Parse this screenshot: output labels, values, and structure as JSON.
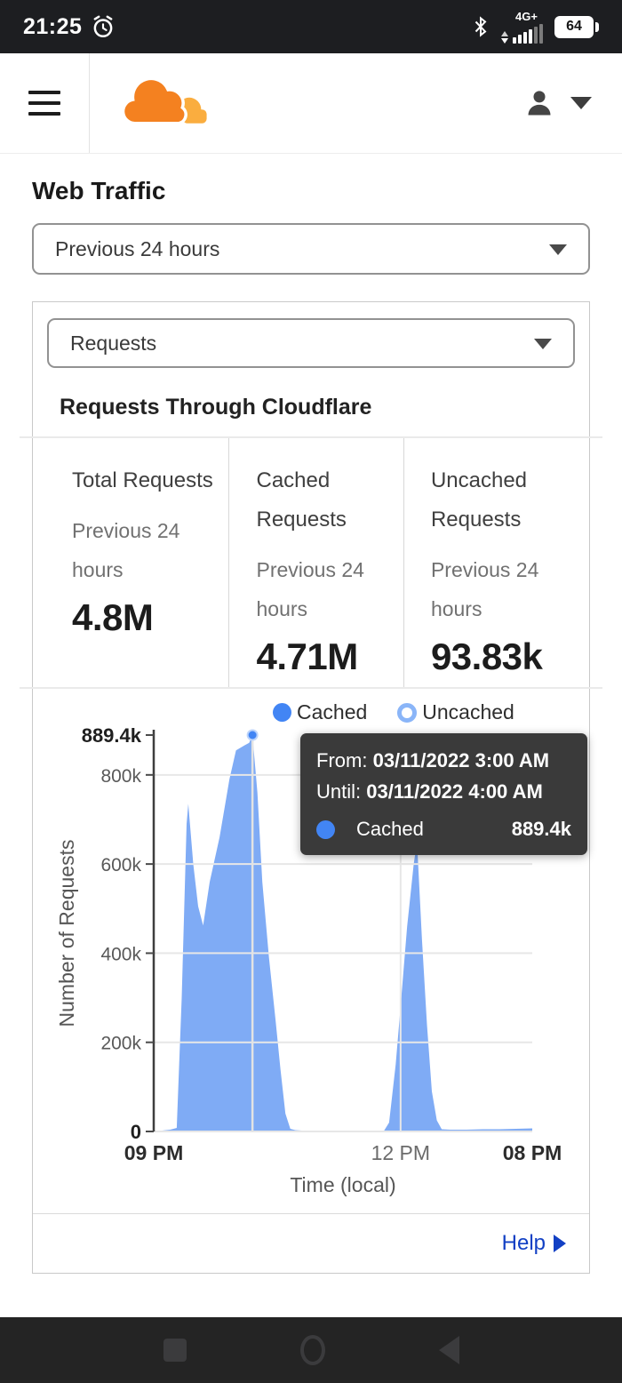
{
  "status_bar": {
    "time": "21:25",
    "network": "4G+",
    "battery": "64"
  },
  "main": {
    "title": "Web Traffic"
  },
  "time_range_select": {
    "value": "Previous 24 hours"
  },
  "metric_select": {
    "value": "Requests"
  },
  "panel": {
    "title": "Requests Through Cloudflare"
  },
  "stats": [
    {
      "title": "Total Requests",
      "subtitle": "Previous 24 hours",
      "value": "4.8M"
    },
    {
      "title": "Cached Requests",
      "subtitle": "Previous 24 hours",
      "value": "4.71M"
    },
    {
      "title": "Uncached Requests",
      "subtitle": "Previous 24 hours",
      "value": "93.83k"
    }
  ],
  "chart_data": {
    "type": "area",
    "title": "Requests Through Cloudflare",
    "xlabel": "Time (local)",
    "ylabel": "Number of Requests",
    "x_axis": "hours offset from 09 PM 03/10/2022",
    "x_range": [
      0,
      23
    ],
    "ylim": [
      0,
      889.4
    ],
    "values_unit": "thousands of requests",
    "grid": true,
    "legend_position": "top",
    "legend": [
      {
        "label": "Cached",
        "marker": "filled",
        "color": "#4285f4"
      },
      {
        "label": "Uncached",
        "marker": "ring",
        "color": "#8ab5f8"
      }
    ],
    "y_ticks": [
      {
        "label": "889.4k",
        "value": 889.4,
        "bold": true,
        "gridline": false
      },
      {
        "label": "800k",
        "value": 800,
        "bold": false,
        "gridline": true
      },
      {
        "label": "600k",
        "value": 600,
        "bold": false,
        "gridline": true
      },
      {
        "label": "400k",
        "value": 400,
        "bold": false,
        "gridline": true
      },
      {
        "label": "200k",
        "value": 200,
        "bold": false,
        "gridline": true
      },
      {
        "label": "0",
        "value": 0,
        "bold": true,
        "gridline": true
      }
    ],
    "x_ticks": [
      {
        "label": "09 PM",
        "hour": 0,
        "bold": true,
        "gridline": false
      },
      {
        "label": "12 PM",
        "hour": 15,
        "bold": false,
        "gridline": true
      },
      {
        "label": "08 PM",
        "hour": 23,
        "bold": true,
        "gridline": false
      }
    ],
    "series": [
      {
        "name": "Cached",
        "area_color": "#7fabf5",
        "marker_color": "#4285f4",
        "points": [
          [
            0,
            2
          ],
          [
            0.5,
            2
          ],
          [
            1,
            4
          ],
          [
            1.4,
            8
          ],
          [
            1.7,
            300
          ],
          [
            2,
            690
          ],
          [
            2.1,
            735
          ],
          [
            2.4,
            600
          ],
          [
            2.7,
            505
          ],
          [
            3,
            462
          ],
          [
            3.4,
            560
          ],
          [
            4,
            660
          ],
          [
            4.6,
            790
          ],
          [
            5,
            855
          ],
          [
            5.5,
            866
          ],
          [
            5.8,
            872
          ],
          [
            6,
            889.4
          ],
          [
            6.3,
            760
          ],
          [
            6.6,
            560
          ],
          [
            7,
            390
          ],
          [
            7.4,
            250
          ],
          [
            7.7,
            140
          ],
          [
            8,
            40
          ],
          [
            8.3,
            6
          ],
          [
            8.6,
            3
          ],
          [
            9,
            2
          ],
          [
            10,
            2
          ],
          [
            11,
            2
          ],
          [
            12,
            2
          ],
          [
            13,
            2
          ],
          [
            14,
            2
          ],
          [
            14.3,
            20
          ],
          [
            14.7,
            150
          ],
          [
            15,
            280
          ],
          [
            15.4,
            460
          ],
          [
            15.8,
            600
          ],
          [
            16,
            650
          ],
          [
            16.3,
            430
          ],
          [
            16.6,
            240
          ],
          [
            16.9,
            90
          ],
          [
            17.2,
            25
          ],
          [
            17.5,
            5
          ],
          [
            18,
            4
          ],
          [
            19,
            4
          ],
          [
            20,
            5
          ],
          [
            21,
            5
          ],
          [
            22,
            6
          ],
          [
            23,
            7
          ]
        ]
      }
    ],
    "highlight": {
      "hour": 6,
      "series": "Cached",
      "value": 889.4,
      "crosshair_color": "#e3e3e3"
    }
  },
  "tooltip": {
    "from_label": "From:",
    "from_value": "03/11/2022 3:00 AM",
    "until_label": "Until:",
    "until_value": "03/11/2022 4:00 AM",
    "series_label": "Cached",
    "series_value": "889.4k",
    "series_color": "#4285f4",
    "bg": "#3a3a3a"
  },
  "help": {
    "label": "Help"
  },
  "colors": {
    "brand_orange": "#f48120",
    "brand_orange_light": "#faad3f",
    "link_blue": "#1240c4",
    "chart_area": "#7fabf5",
    "chart_marker": "#4285f4",
    "tooltip_bg": "#3a3a3a",
    "status_bar_bg": "#1d1e21",
    "nav_bar_bg": "#242424"
  }
}
